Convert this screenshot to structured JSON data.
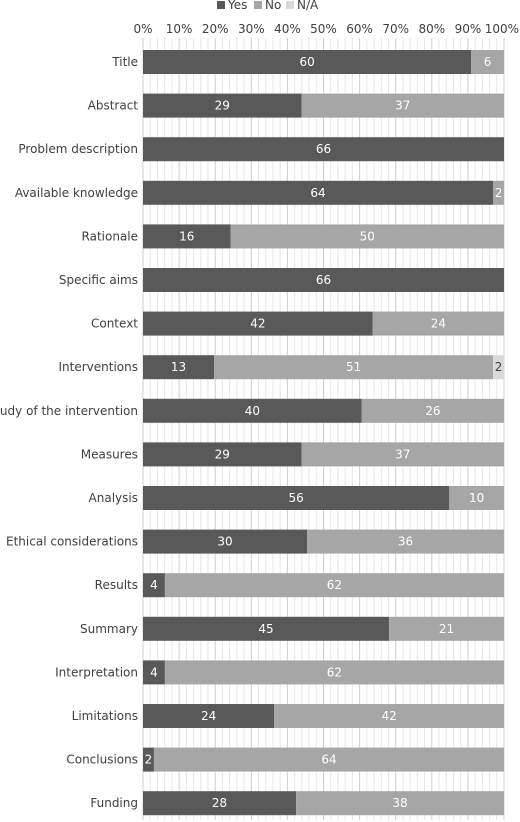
{
  "chart_data": {
    "type": "bar",
    "orientation": "horizontal",
    "stacked": true,
    "percent_stacked": true,
    "categories": [
      "Title",
      "Abstract",
      "Problem description",
      "Available knowledge",
      "Rationale",
      "Specific aims",
      "Context",
      "Interventions",
      "Study of the intervention",
      "Measures",
      "Analysis",
      "Ethical considerations",
      "Results",
      "Summary",
      "Interpretation",
      "Limitations",
      "Conclusions",
      "Funding"
    ],
    "series": [
      {
        "name": "Yes",
        "color": "#595959",
        "label_color": "#ffffff",
        "values": [
          60,
          29,
          66,
          64,
          16,
          66,
          42,
          13,
          40,
          29,
          56,
          30,
          4,
          45,
          4,
          24,
          2,
          28
        ]
      },
      {
        "name": "No",
        "color": "#a6a6a6",
        "label_color": "#ffffff",
        "values": [
          6,
          37,
          0,
          2,
          50,
          0,
          24,
          51,
          26,
          37,
          10,
          36,
          62,
          21,
          62,
          42,
          64,
          38
        ]
      },
      {
        "name": "N/A",
        "color": "#d9d9d9",
        "label_color": "#404040",
        "values": [
          0,
          0,
          0,
          0,
          0,
          0,
          0,
          2,
          0,
          0,
          0,
          0,
          0,
          0,
          0,
          0,
          0,
          0
        ]
      }
    ],
    "xlim": [
      0,
      100
    ],
    "xticks": [
      "0%",
      "10%",
      "20%",
      "30%",
      "40%",
      "50%",
      "60%",
      "70%",
      "80%",
      "90%",
      "100%"
    ],
    "x_axis_position": "top",
    "grid": true,
    "legend_position": "top"
  }
}
